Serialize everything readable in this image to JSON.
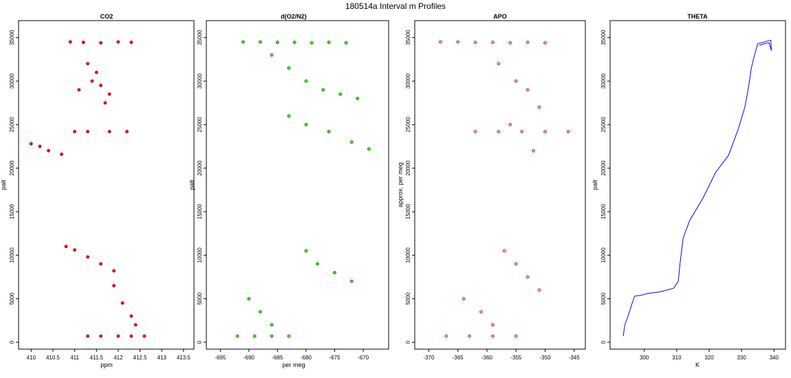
{
  "figure_title": "180514a   Interval m Profiles",
  "panels": [
    {
      "title": "CO2",
      "xlabel": "ppm",
      "ylabel": "palt"
    },
    {
      "title": "d(O2/N2)",
      "xlabel": "per meg",
      "ylabel": "palt"
    },
    {
      "title": "APO",
      "xlabel": "",
      "ylabel": "approx. per meg"
    },
    {
      "title": "THETA",
      "xlabel": "K",
      "ylabel": "palt"
    }
  ],
  "chart_data": [
    {
      "type": "scatter",
      "title": "CO2",
      "xlabel": "ppm",
      "ylabel": "palt",
      "xlim": [
        409.9,
        413.55
      ],
      "ylim": [
        0,
        36000
      ],
      "xticks": [
        410.0,
        410.5,
        411.0,
        411.5,
        412.0,
        412.5,
        413.0,
        413.5
      ],
      "yticks": [
        0,
        5000,
        10000,
        15000,
        20000,
        25000,
        30000,
        35000
      ],
      "color": "#ff0000",
      "series": [
        {
          "x": [
            410.9,
            411.2,
            411.6,
            412.0,
            412.3
          ],
          "y": [
            34500,
            34450,
            34400,
            34500,
            34450
          ]
        },
        {
          "x": [
            411.3,
            411.5,
            411.6,
            411.8,
            411.1,
            411.4,
            411.7
          ],
          "y": [
            32000,
            31000,
            29500,
            28500,
            29000,
            30000,
            27500
          ]
        },
        {
          "x": [
            410.0,
            410.2,
            410.4,
            410.7
          ],
          "y": [
            22800,
            22500,
            22000,
            21600
          ]
        },
        {
          "x": [
            411.0,
            411.3,
            411.8,
            412.2
          ],
          "y": [
            24200,
            24200,
            24200,
            24200
          ]
        },
        {
          "x": [
            410.8,
            411.0,
            411.3,
            411.6,
            411.9
          ],
          "y": [
            11000,
            10600,
            9800,
            9000,
            8200
          ]
        },
        {
          "x": [
            411.9,
            412.1,
            412.3,
            412.4
          ],
          "y": [
            6500,
            4500,
            3000,
            2000
          ]
        },
        {
          "x": [
            411.3,
            411.6,
            412.0,
            412.3,
            412.6
          ],
          "y": [
            700,
            700,
            700,
            700,
            700
          ]
        }
      ]
    },
    {
      "type": "scatter",
      "title": "d(O2/N2)",
      "xlabel": "per meg",
      "ylabel": "palt",
      "xlim": [
        -696,
        -667
      ],
      "ylim": [
        0,
        36000
      ],
      "xticks": [
        -695,
        -690,
        -685,
        -680,
        -675,
        -670
      ],
      "yticks": [
        0,
        5000,
        10000,
        15000,
        20000,
        25000,
        30000,
        35000
      ],
      "color": "#00ff00",
      "series": [
        {
          "x": [
            -691,
            -688,
            -685,
            -682,
            -679,
            -676,
            -673
          ],
          "y": [
            34500,
            34500,
            34450,
            34450,
            34400,
            34450,
            34400
          ]
        },
        {
          "x": [
            -686,
            -683,
            -680,
            -677,
            -674,
            -671
          ],
          "y": [
            33000,
            31500,
            30000,
            29000,
            28500,
            28000
          ]
        },
        {
          "x": [
            -683,
            -680,
            -676,
            -672,
            -669
          ],
          "y": [
            26000,
            25000,
            24200,
            23000,
            22200
          ]
        },
        {
          "x": [
            -680,
            -678,
            -675,
            -672
          ],
          "y": [
            10500,
            9000,
            8000,
            7000
          ]
        },
        {
          "x": [
            -690,
            -688,
            -686
          ],
          "y": [
            5000,
            3500,
            2000
          ]
        },
        {
          "x": [
            -692,
            -689,
            -686,
            -683
          ],
          "y": [
            700,
            700,
            700,
            700
          ]
        }
      ]
    },
    {
      "type": "scatter",
      "title": "APO",
      "xlabel": "",
      "ylabel": "approx. per meg",
      "xlim": [
        -371,
        -344.5
      ],
      "ylim": [
        0,
        36000
      ],
      "xticks": [
        -370,
        -365,
        -360,
        -355,
        -350,
        -345
      ],
      "yticks": [
        0,
        5000,
        10000,
        15000,
        20000,
        25000,
        30000,
        35000
      ],
      "color": "#ee82ee",
      "series": [
        {
          "x": [
            -368,
            -365,
            -362,
            -359,
            -356,
            -353,
            -350
          ],
          "y": [
            34500,
            34500,
            34450,
            34450,
            34400,
            34450,
            34400
          ]
        },
        {
          "x": [
            -358,
            -355,
            -353,
            -351,
            -356,
            -352
          ],
          "y": [
            32000,
            30000,
            29000,
            27000,
            25000,
            22000
          ]
        },
        {
          "x": [
            -362,
            -358,
            -354,
            -350,
            -346
          ],
          "y": [
            24200,
            24200,
            24200,
            24200,
            24200
          ]
        },
        {
          "x": [
            -357,
            -355,
            -353,
            -351
          ],
          "y": [
            10500,
            9000,
            7500,
            6000
          ]
        },
        {
          "x": [
            -364,
            -361,
            -359
          ],
          "y": [
            5000,
            3500,
            2000
          ]
        },
        {
          "x": [
            -367,
            -363,
            -359,
            -355
          ],
          "y": [
            700,
            700,
            700,
            700
          ]
        }
      ]
    },
    {
      "type": "line",
      "title": "THETA",
      "xlabel": "K",
      "ylabel": "palt",
      "xlim": [
        292,
        341
      ],
      "ylim": [
        0,
        36000
      ],
      "xticks": [
        300,
        310,
        320,
        330,
        340
      ],
      "yticks": [
        0,
        5000,
        10000,
        15000,
        20000,
        25000,
        30000,
        35000
      ],
      "color": "#0000ff",
      "series": [
        {
          "x": [
            293.5,
            294,
            295,
            296,
            297,
            299,
            301,
            305,
            309,
            310.5,
            311,
            312,
            314,
            318,
            322,
            326,
            329,
            331,
            332,
            333,
            334,
            335,
            338,
            339,
            339.2,
            338.5,
            337,
            335.5
          ],
          "y": [
            700,
            2000,
            3000,
            4200,
            5300,
            5400,
            5600,
            5800,
            6200,
            7000,
            9000,
            12000,
            14000,
            16500,
            19500,
            21500,
            24500,
            27000,
            29000,
            31500,
            33000,
            34300,
            34600,
            34700,
            33500,
            34400,
            34300,
            34100
          ]
        }
      ]
    }
  ]
}
